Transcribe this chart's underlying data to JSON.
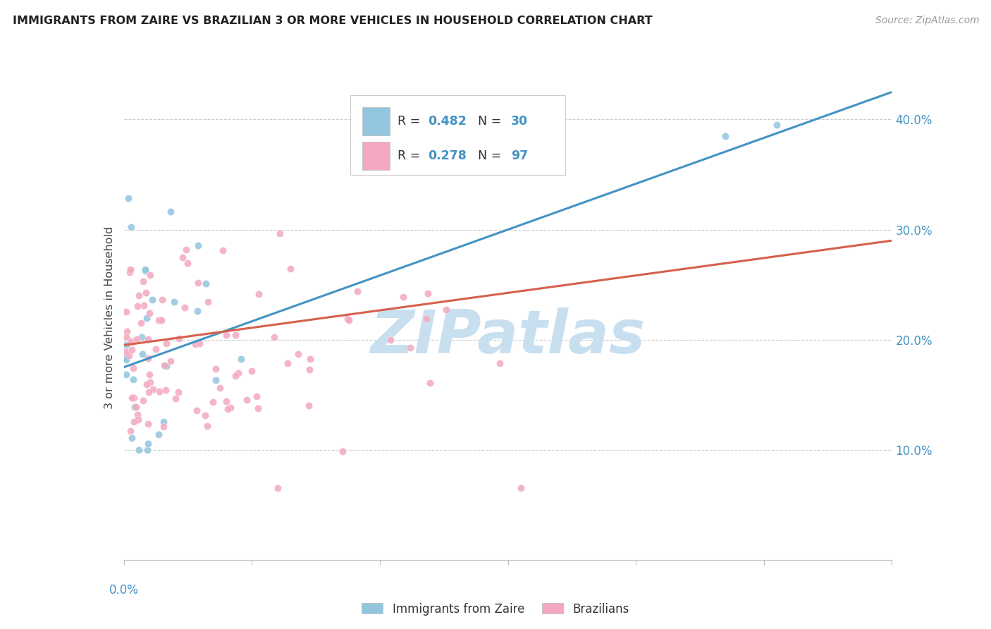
{
  "title": "IMMIGRANTS FROM ZAIRE VS BRAZILIAN 3 OR MORE VEHICLES IN HOUSEHOLD CORRELATION CHART",
  "source": "Source: ZipAtlas.com",
  "ylabel": "3 or more Vehicles in Household",
  "y_tick_vals": [
    0.1,
    0.2,
    0.3,
    0.4
  ],
  "y_tick_labels": [
    "10.0%",
    "20.0%",
    "30.0%",
    "40.0%"
  ],
  "xlim": [
    0.0,
    0.3
  ],
  "ylim": [
    0.0,
    0.44
  ],
  "blue_R": 0.482,
  "blue_N": 30,
  "pink_R": 0.278,
  "pink_N": 97,
  "blue_color": "#92c5de",
  "pink_color": "#f4a8c0",
  "blue_line_color": "#4393c3",
  "pink_line_color": "#d6604d",
  "watermark": "ZIPatlas",
  "watermark_color": "#c8dff0",
  "legend_label_blue": "Immigrants from Zaire",
  "legend_label_pink": "Brazilians",
  "text_color_blue": "#4393c3",
  "text_color_dark": "#333333",
  "blue_line_x0": 0.0,
  "blue_line_y0": 0.175,
  "blue_line_x1": 0.3,
  "blue_line_y1": 0.425,
  "pink_line_x0": 0.0,
  "pink_line_y0": 0.195,
  "pink_line_x1": 0.3,
  "pink_line_y1": 0.29
}
